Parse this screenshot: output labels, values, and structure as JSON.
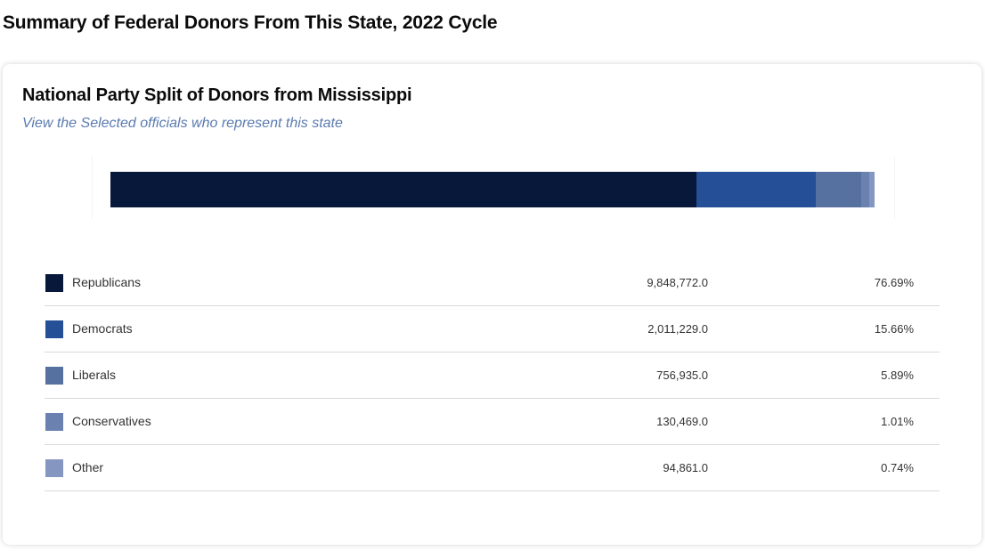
{
  "page": {
    "title": "Summary of Federal Donors From This State, 2022 Cycle"
  },
  "card": {
    "title": "National Party Split of Donors from Mississippi",
    "subtitle_link": "View the Selected officials who represent this state"
  },
  "chart_data": {
    "type": "bar",
    "orientation": "horizontal-stacked",
    "categories": [
      "Republicans",
      "Democrats",
      "Liberals",
      "Conservatives",
      "Other"
    ],
    "values": [
      9848772.0,
      2011229.0,
      756935.0,
      130469.0,
      94861.0
    ],
    "percentages": [
      76.69,
      15.66,
      5.89,
      1.01,
      0.74
    ],
    "colors": [
      "#07183a",
      "#254f96",
      "#56709f",
      "#6b82b0",
      "#8596c1"
    ],
    "legend_placement": "bottom-table"
  },
  "legend": {
    "rows": [
      {
        "label": "Republicans",
        "amount": "9,848,772.0",
        "pct": "76.69%",
        "color": "#07183a"
      },
      {
        "label": "Democrats",
        "amount": "2,011,229.0",
        "pct": "15.66%",
        "color": "#254f96"
      },
      {
        "label": "Liberals",
        "amount": "756,935.0",
        "pct": "5.89%",
        "color": "#56709f"
      },
      {
        "label": "Conservatives",
        "amount": "130,469.0",
        "pct": "1.01%",
        "color": "#6b82b0"
      },
      {
        "label": "Other",
        "amount": "94,861.0",
        "pct": "0.74%",
        "color": "#8596c1"
      }
    ]
  }
}
